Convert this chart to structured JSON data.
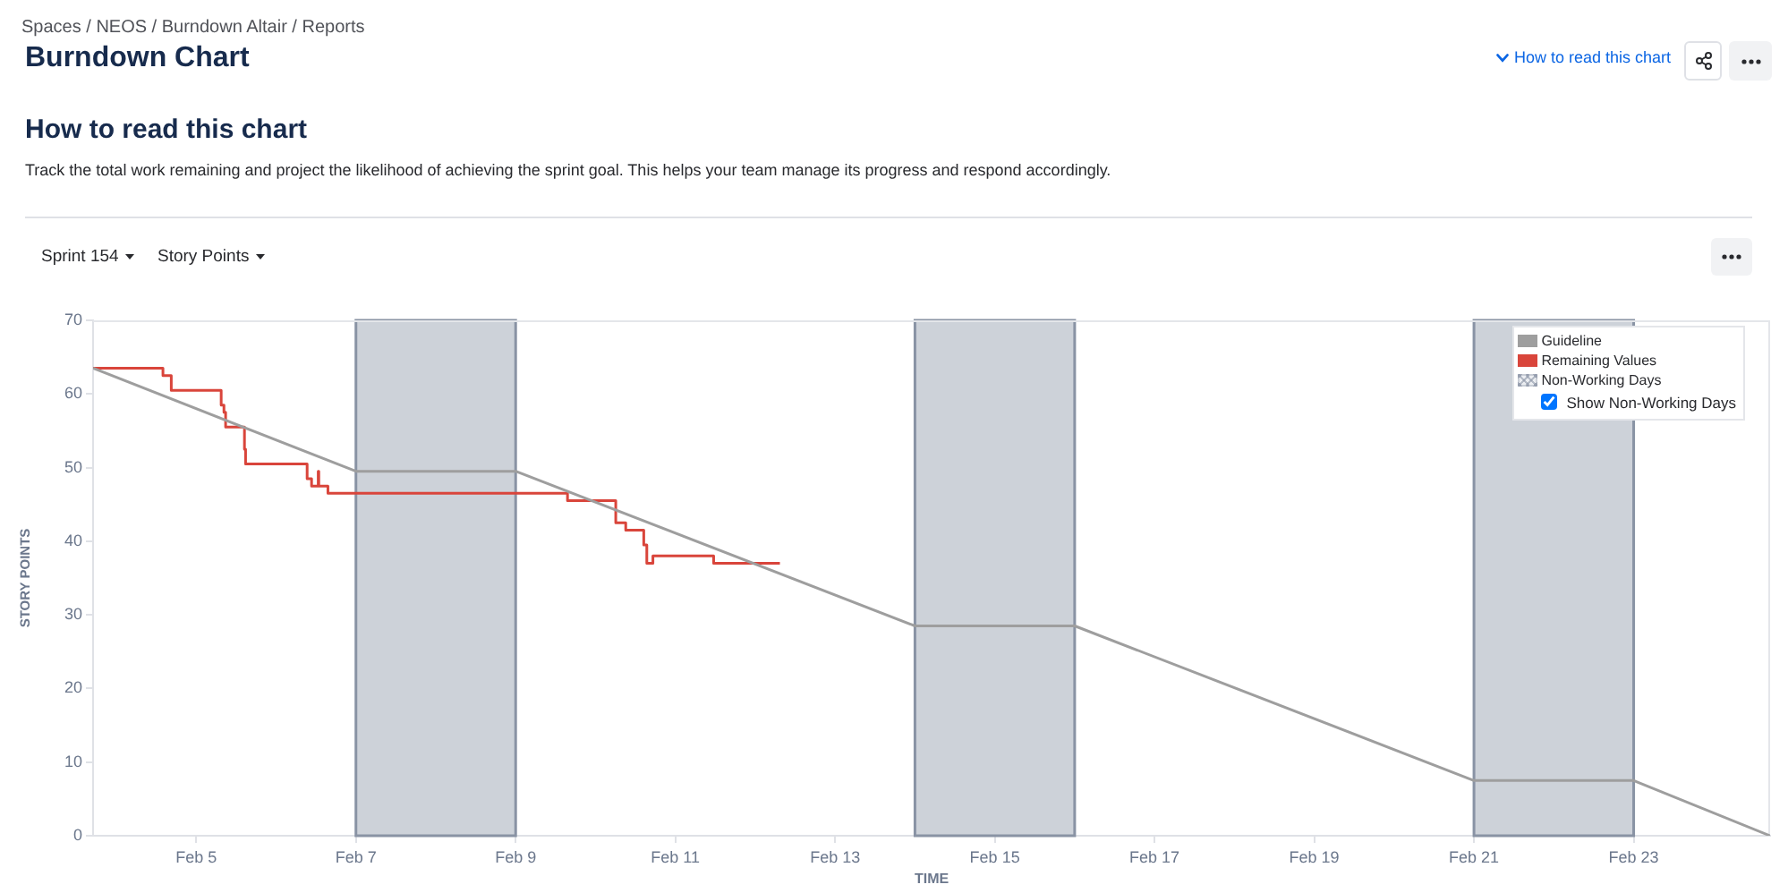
{
  "chart_data": {
    "type": "line",
    "title": "Burndown Chart",
    "subtitle": "Track the total work remaining and project the likelihood of achieving the sprint goal. This helps your team manage its progress and respond accordingly.",
    "annotations": [
      "Spaces / NEOS / Burndown Altair / Reports",
      "How to read this chart",
      "How to read this chart",
      "Sprint 154",
      "Story Points",
      "Show Non-Working Days"
    ],
    "xlabel": "TIME",
    "ylabel": "STORY POINTS",
    "xlim": [
      "--02-03T17:00",
      "--02-24T17:00"
    ],
    "xticks": [
      {
        "value": "--02-05",
        "label": "Feb 5"
      },
      {
        "value": "--02-07",
        "label": "Feb 7"
      },
      {
        "value": "--02-09",
        "label": "Feb 9"
      },
      {
        "value": "--02-11",
        "label": "Feb 11"
      },
      {
        "value": "--02-13",
        "label": "Feb 13"
      },
      {
        "value": "--02-15",
        "label": "Feb 15"
      },
      {
        "value": "--02-17",
        "label": "Feb 17"
      },
      {
        "value": "--02-19",
        "label": "Feb 19"
      },
      {
        "value": "--02-21",
        "label": "Feb 21"
      },
      {
        "value": "--02-23",
        "label": "Feb 23"
      }
    ],
    "ylim": [
      0,
      70
    ],
    "yticks": [
      0,
      10,
      20,
      30,
      40,
      50,
      60,
      70
    ],
    "grid": false,
    "legend": "top right",
    "marker": "none",
    "series": [
      {
        "name": "Guideline",
        "type": "line",
        "color": "#9e9e9e",
        "x": [
          "--02-03T17:00",
          "--02-07",
          "--02-09",
          "--02-14",
          "--02-16",
          "--02-21",
          "--02-23",
          "--02-24T17:00"
        ],
        "values": [
          63.5,
          49.5,
          49.5,
          28.5,
          28.5,
          7.5,
          7.5,
          0
        ]
      },
      {
        "name": "Remaining Values",
        "type": "step",
        "color": "#d9453b",
        "x": [
          "--02-03T17:00",
          "--02-04T14:00",
          "--02-04T16:30",
          "--02-05T07:30",
          "--02-05T08:20",
          "--02-05T08:50",
          "--02-05T14:30",
          "--02-05T14:50",
          "--02-06T09:20",
          "--02-06T10:40",
          "--02-06T12:40",
          "--02-06T12:50",
          "--02-06T15:35",
          "--02-09T15:35",
          "--02-10T06:05",
          "--02-10T09:05",
          "--02-10T14:30",
          "--02-10T15:25",
          "--02-10T17:15",
          "--02-11T11:30",
          "--02-12T07:25"
        ],
        "values": [
          63.5,
          62.5,
          60.5,
          58.5,
          57.5,
          55.5,
          52.5,
          50.5,
          48.5,
          47.5,
          49.5,
          47.5,
          46.5,
          45.5,
          42.5,
          41.5,
          39.5,
          37,
          38,
          37,
          37
        ]
      }
    ],
    "bands": [
      {
        "axis": "x",
        "from": "--02-07",
        "to": "--02-09",
        "color": "#8993a4"
      },
      {
        "axis": "x",
        "from": "--02-14",
        "to": "--02-16",
        "color": "#8993a4"
      },
      {
        "axis": "x",
        "from": "--02-21",
        "to": "--02-23",
        "label": "Non-Working Days",
        "color": "#8993a4"
      }
    ]
  }
}
